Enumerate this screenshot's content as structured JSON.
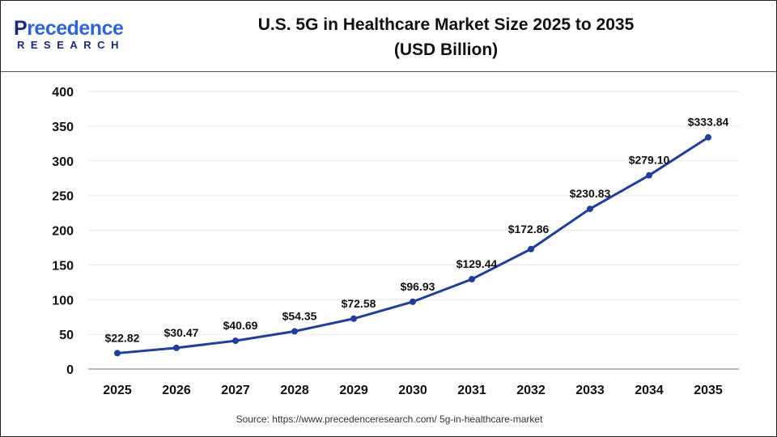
{
  "logo": {
    "brand_line1": "Precedence",
    "brand_line2": "RESEARCH"
  },
  "title_line1": "U.S. 5G in Healthcare Market Size 2025 to 2035",
  "title_line2": "(USD Billion)",
  "source": "Source: https://www.precedenceresearch.com/ 5g-in-healthcare-market",
  "chart_data": {
    "type": "line",
    "title": "U.S. 5G in Healthcare Market Size 2025 to 2035 (USD Billion)",
    "categories": [
      "2025",
      "2026",
      "2027",
      "2028",
      "2029",
      "2030",
      "2031",
      "2032",
      "2033",
      "2034",
      "2035"
    ],
    "values": [
      22.82,
      30.47,
      40.69,
      54.35,
      72.58,
      96.93,
      129.44,
      172.86,
      230.83,
      279.1,
      333.84
    ],
    "data_labels": [
      "$22.82",
      "$30.47",
      "$40.69",
      "$54.35",
      "$72.58",
      "$96.93",
      "$129.44",
      "$172.86",
      "$230.83",
      "$279.10",
      "$333.84"
    ],
    "ylim": [
      0,
      400
    ],
    "yticks": [
      0,
      50,
      100,
      150,
      200,
      250,
      300,
      350,
      400
    ],
    "grid": true,
    "line_color": "#1f3f99"
  }
}
